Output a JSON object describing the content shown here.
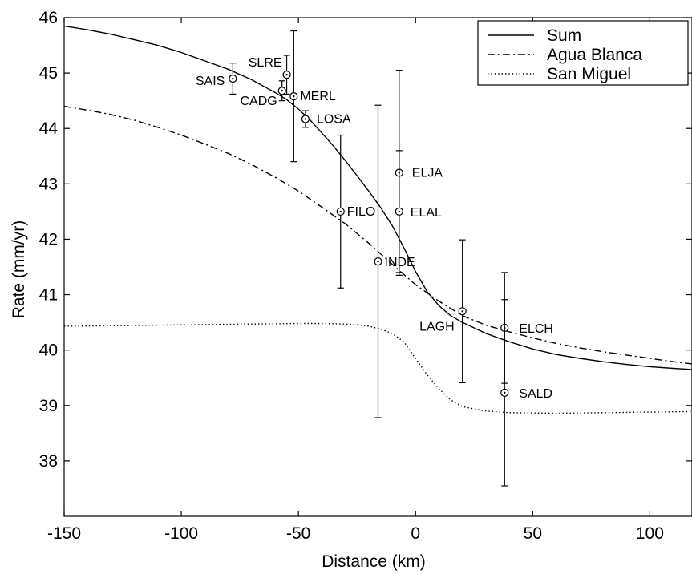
{
  "chart_data": {
    "type": "line",
    "title": "",
    "xlabel": "Distance (km)",
    "ylabel": "Rate (mm/yr)",
    "xlim": [
      -150,
      118
    ],
    "ylim": [
      37,
      46
    ],
    "xticks": [
      -150,
      -100,
      -50,
      0,
      50,
      100
    ],
    "yticks": [
      38,
      39,
      40,
      41,
      42,
      43,
      44,
      45,
      46
    ],
    "grid": false,
    "legend_position": "top-right",
    "series": [
      {
        "name": "Sum",
        "style": "solid",
        "x": [
          -150,
          -140,
          -130,
          -120,
          -110,
          -100,
          -90,
          -80,
          -70,
          -60,
          -55,
          -50,
          -45,
          -40,
          -35,
          -30,
          -25,
          -20,
          -15,
          -10,
          -5,
          0,
          5,
          10,
          15,
          20,
          25,
          30,
          40,
          50,
          60,
          70,
          80,
          90,
          100,
          110,
          118
        ],
        "y": [
          45.85,
          45.78,
          45.7,
          45.6,
          45.5,
          45.37,
          45.22,
          45.07,
          44.88,
          44.65,
          44.52,
          44.35,
          44.15,
          43.92,
          43.68,
          43.42,
          43.15,
          42.87,
          42.58,
          42.25,
          41.85,
          41.42,
          41.05,
          40.8,
          40.62,
          40.5,
          40.4,
          40.3,
          40.15,
          40.02,
          39.92,
          39.85,
          39.79,
          39.74,
          39.7,
          39.67,
          39.65
        ]
      },
      {
        "name": "Agua Blanca",
        "style": "dashdot",
        "x": [
          -150,
          -140,
          -130,
          -120,
          -110,
          -100,
          -90,
          -80,
          -70,
          -60,
          -50,
          -40,
          -30,
          -20,
          -10,
          0,
          10,
          20,
          30,
          40,
          50,
          60,
          70,
          80,
          90,
          100,
          110,
          118
        ],
        "y": [
          44.4,
          44.33,
          44.25,
          44.15,
          44.02,
          43.88,
          43.72,
          43.55,
          43.35,
          43.12,
          42.87,
          42.58,
          42.28,
          41.93,
          41.55,
          41.18,
          40.88,
          40.62,
          40.45,
          40.33,
          40.22,
          40.12,
          40.04,
          39.97,
          39.91,
          39.85,
          39.79,
          39.75
        ]
      },
      {
        "name": "San Miguel",
        "style": "dotted",
        "x": [
          -150,
          -130,
          -110,
          -90,
          -70,
          -50,
          -40,
          -30,
          -25,
          -20,
          -15,
          -10,
          -5,
          0,
          5,
          10,
          15,
          20,
          30,
          40,
          60,
          80,
          100,
          118
        ],
        "y": [
          40.43,
          40.44,
          40.45,
          40.46,
          40.47,
          40.48,
          40.48,
          40.47,
          40.46,
          40.43,
          40.38,
          40.3,
          40.15,
          39.85,
          39.55,
          39.3,
          39.1,
          38.98,
          38.9,
          38.87,
          38.86,
          38.87,
          38.88,
          38.89
        ]
      }
    ],
    "stations": [
      {
        "name": "SAIS",
        "x": -78,
        "y": 44.9,
        "err": 0.28
      },
      {
        "name": "SLRE",
        "x": -55,
        "y": 44.97,
        "err": 0.35
      },
      {
        "name": "CADG",
        "x": -57,
        "y": 44.68,
        "err": 0.18
      },
      {
        "name": "MERL",
        "x": -52,
        "y": 44.58,
        "err": 1.18
      },
      {
        "name": "LOSA",
        "x": -47,
        "y": 44.17,
        "err": 0.15
      },
      {
        "name": "FILO",
        "x": -32,
        "y": 42.5,
        "err": 1.38
      },
      {
        "name": "INDE",
        "x": -16,
        "y": 41.6,
        "err": 2.82
      },
      {
        "name": "ELJA",
        "x": -7,
        "y": 43.2,
        "err": 1.85
      },
      {
        "name": "ELAL",
        "x": -7,
        "y": 42.5,
        "err": 1.1
      },
      {
        "name": "LAGH",
        "x": 20,
        "y": 40.7,
        "err": 1.29
      },
      {
        "name": "ELCH",
        "x": 38,
        "y": 40.4,
        "err": 1.0
      },
      {
        "name": "SALD",
        "x": 38,
        "y": 39.23,
        "err": 1.68
      }
    ]
  }
}
